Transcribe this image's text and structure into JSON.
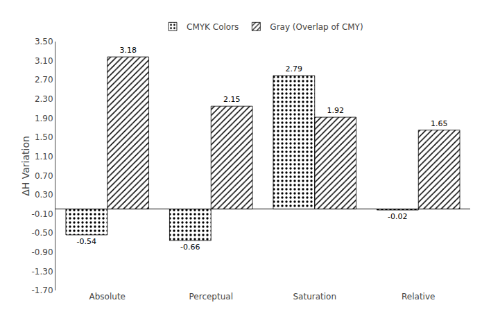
{
  "chart_data": {
    "type": "bar",
    "categories": [
      "Absolute",
      "Perceptual",
      "Saturation",
      "Relative"
    ],
    "series": [
      {
        "name": "CMYK Colors",
        "color": "#c0689a",
        "values": [
          -0.54,
          -0.66,
          2.79,
          -0.02
        ]
      },
      {
        "name": "Gray (Overlap of CMY)",
        "color": "#ffffff",
        "values": [
          3.18,
          2.15,
          1.92,
          1.65
        ]
      }
    ],
    "ylabel": "ΔH Variation",
    "ylim": [
      -1.7,
      3.5
    ],
    "yticks": [
      {
        "value": -1.7,
        "label": "-1.70"
      },
      {
        "value": -1.3,
        "label": "-1.30"
      },
      {
        "value": -0.9,
        "label": "-0.90"
      },
      {
        "value": -0.5,
        "label": "-0.50"
      },
      {
        "value": -0.1,
        "label": "-0.10"
      },
      {
        "value": 0.3,
        "label": "0.30"
      },
      {
        "value": 0.7,
        "label": "0.70"
      },
      {
        "value": 1.1,
        "label": "1.10"
      },
      {
        "value": 1.5,
        "label": "1.50"
      },
      {
        "value": 1.9,
        "label": "1.90"
      },
      {
        "value": 2.3,
        "label": "2.30"
      },
      {
        "value": 2.7,
        "label": "2.70"
      },
      {
        "value": 3.1,
        "label": "3.10"
      },
      {
        "value": 3.5,
        "label": "3.50"
      }
    ],
    "grid": false,
    "legend": "top",
    "data_labels": true
  }
}
